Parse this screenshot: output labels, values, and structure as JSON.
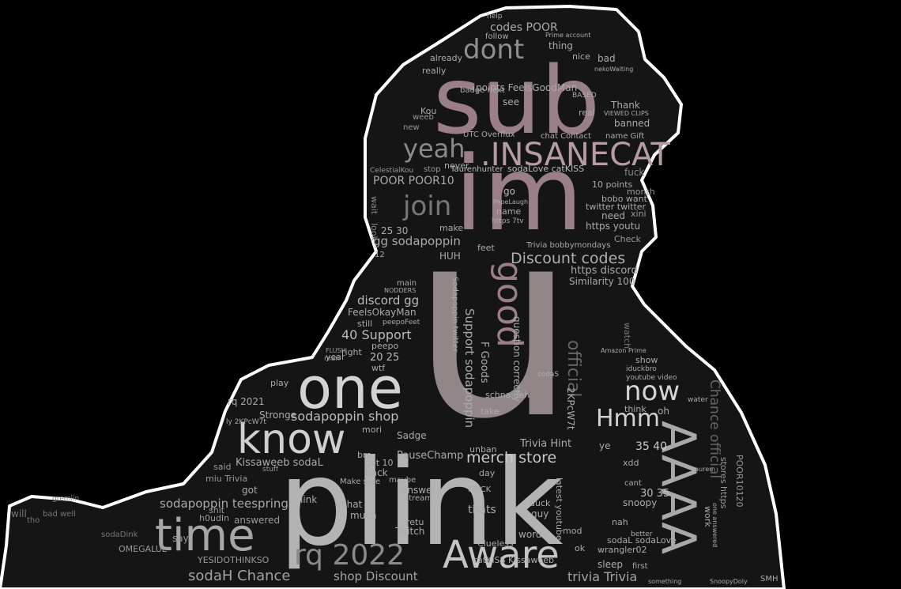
{
  "colors": {
    "background": "#000000",
    "silhouette_fill": "#151515",
    "silhouette_outline": "#ffffff",
    "mauve": "#9a7f86",
    "grey": "#8e8e8e",
    "light": "#cfcfcf"
  },
  "words": {
    "u": "u",
    "plink": "plink",
    "sub": "sub",
    "im": "im",
    "insanecat": ".INSANECAT",
    "one": "one",
    "aaaa": "AAAA",
    "good": "good",
    "know": "know",
    "time": "time",
    "aware": "Aware",
    "rq2022": "rq 2022",
    "yeah": "yeah",
    "join": "join",
    "dont": "dont",
    "now": "now",
    "hmm": "Hmm",
    "discount_codes": "Discount codes",
    "merch_store": "merch store",
    "sodah_chance": "sodaH Chance",
    "shop_discount": "shop Discount",
    "trivia_trivia": "trivia Trivia",
    "sodapoppin_shop": "sodapoppin shop",
    "sodapoppin_teespring": "sodapoppin teespring",
    "support": "40 Support",
    "discord_gg": "discord gg",
    "gg_sodapoppin": "gg sodapoppin",
    "poor_poor10": "POOR POOR10",
    "codes_poor": "codes POOR",
    "points_feelsgoodman": "points FeelsGoodMan",
    "similarity": "Similarity 100",
    "https_discord": "https discord",
    "feelsokayman": "FeelsOkayMan",
    "rq2021": "rq 2021",
    "stronge": "Stronge",
    "kissaweeb": "Kissaweeb sodaL",
    "pausechamp": "PauseChamp",
    "sadge": "Sadge",
    "twitch": "Twitch",
    "thats": "thats",
    "link": "link",
    "answer": "answer",
    "got": "got",
    "chat": "chat",
    "much": "much",
    "said": "said",
    "say": "say",
    "miu_trivia": "miu Trivia",
    "shit": "shit",
    "answered": "answered",
    "will": "will",
    "tho": "tho",
    "bad_well": "bad well",
    "omegalul": "OMEGALUL",
    "yesido": "YESIDOTHINKSO",
    "h0udin": "h0udIn",
    "sodadink": "sodaDink",
    "hours": "hours",
    "feet": "feet",
    "huh": "HUH",
    "make": "make",
    "go": "go",
    "name": "name",
    "never": "never",
    "see": "see",
    "thank": "Thank",
    "banned": "banned",
    "need": "need",
    "https_youtu": "https youtu",
    "bobo_want": "bobo want",
    "twitter": "twitter twitter",
    "points10": "10 points",
    "month": "month",
    "xini": "xini",
    "check": "Check",
    "real": "real",
    "based": "BASED",
    "nice": "nice",
    "bad": "bad",
    "thing": "thing",
    "already": "already",
    "really": "really",
    "follow": "follow",
    "badge_next": "badge next",
    "kou": "Kou",
    "weeb": "weeb",
    "new": "new",
    "celestialkou": "CelestialKou",
    "stop": "stop",
    "sodalove_catkiss": "sodaLove catKISS",
    "taurenhunter": "Taurenhunter",
    "utc_overflux": "UTC Overflux",
    "chat_contact": "chat Contact",
    "name_gift": "name Gift",
    "viewed_clips": "VIEWED CLIPS",
    "fuck": "fuck",
    "look": "look",
    "wait": "wait",
    "main": "main",
    "nodders": "NODDERS",
    "still": "still",
    "peepofeet": "peepoFeet",
    "right": "right",
    "peepo": "peepo",
    "man": "man",
    "year": "year",
    "20_25": "20 25",
    "25_30": "25 30",
    "wtf": "wtf",
    "play": "play",
    "lol": "lol",
    "flush": "FLUSH",
    "n12": "12",
    "good_caption": "F Goods",
    "question": "question correctly",
    "official": "official",
    "support_sodapoppin": "Support sodapoppin",
    "schnaidah": "schnaidah",
    "take": "take",
    "day": "day",
    "unban": "unban",
    "frick": "FRICK",
    "retu": "retu",
    "mod": "mod",
    "word": "word",
    "guy": "guy",
    "duck": "duck",
    "trivia_hint": "Trivia Hint",
    "catkiss_kissaweeb": "catKISS Kissaweeb",
    "clueless": "Clueless",
    "latest_youtube": "latest youtube",
    "sodal_sodalove": "sodaL sodaLove",
    "wrangler": "wrangler02",
    "ok": "ok",
    "sleep": "sleep",
    "snoopy": "snoopy",
    "nah": "nah",
    "better": "better",
    "n30_35": "30 35",
    "n35_40": "35 40",
    "xdd": "xdd",
    "think": "think",
    "oh": "oh",
    "ye": "ye",
    "watch": "watch",
    "show": "show",
    "iduckbro": "iduckbro",
    "youtube_video": "youtube video",
    "amazon_prime": "Amazon Prime",
    "work": "work",
    "first": "first",
    "smh": "SMH",
    "snoopydoly": "SnoopyDoly",
    "something": "something",
    "tauren": "tauren",
    "one_answered": "one answered",
    "water": "water",
    "cant": "cant",
    "sodas": "sodaS",
    "makes_sure": "Make sure",
    "maybe": "maybe",
    "back": "back",
    "got10": "got 10",
    "bro": "bro",
    "stuff": "stuff",
    "mori": "mori",
    "lyzkpcw7t": "ly 2KPcW7t",
    "gremlin": "gremlin",
    "stream": "stream",
    "poor10120": "POOR10120",
    "stores_https": "stores https",
    "chance_official": "Chance official",
    "sodapoppin_twitter": "Sodapoppin twitter",
    "code": "2KPcW7t",
    "help": "help",
    "prime_account": "Prime account",
    "nekowaiting": "nekoWaiting",
    "pepelaugh": "PepeLaugh",
    "https_7tv": "https 7tv",
    "bobbymondays": "Trivia bobbymondays"
  }
}
